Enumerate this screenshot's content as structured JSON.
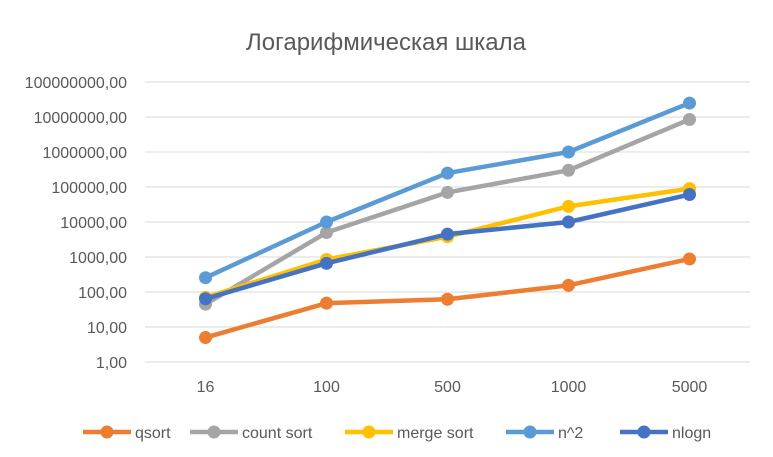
{
  "chart_data": {
    "type": "line",
    "title": "Логарифмическая шкала",
    "categories": [
      "16",
      "100",
      "500",
      "1000",
      "5000"
    ],
    "y_scale": "log",
    "ylim": [
      1,
      100000000
    ],
    "y_tick_values": [
      1,
      10,
      100,
      1000,
      10000,
      100000,
      1000000,
      10000000,
      100000000
    ],
    "y_tick_labels": [
      "1,00",
      "10,00",
      "100,00",
      "1000,00",
      "10000,00",
      "100000,00",
      "1000000,00",
      "10000000,00",
      "100000000,00"
    ],
    "grid": true,
    "legend_position": "bottom",
    "series": [
      {
        "name": "qsort",
        "color": "#ED7D31",
        "values": [
          5,
          48,
          62,
          155,
          880
        ]
      },
      {
        "name": "count sort",
        "color": "#A5A5A5",
        "values": [
          45,
          5000,
          70000,
          300000,
          8500000
        ]
      },
      {
        "name": "merge sort",
        "color": "#FFC000",
        "values": [
          70,
          850,
          3800,
          28000,
          90000
        ]
      },
      {
        "name": "n^2",
        "color": "#5B9BD5",
        "values": [
          256,
          10000,
          250000,
          1000000,
          25000000
        ]
      },
      {
        "name": "nlogn",
        "color": "#4472C4",
        "values": [
          64,
          660,
          4500,
          10000,
          61000
        ]
      }
    ]
  }
}
